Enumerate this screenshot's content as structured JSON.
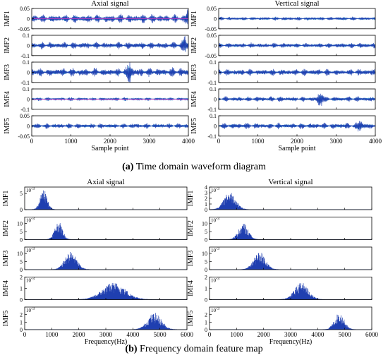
{
  "captions": {
    "a_label": "(a)",
    "a_text": "Time domain waveform diagram",
    "b_label": "(b)",
    "b_text": "Frequency domain feature map"
  },
  "colors": {
    "signal_dark": "#1f3fb0",
    "signal_light": "#3fb3d8",
    "signal_magenta": "#e040c8",
    "axes": "#000000",
    "panel_bg": "#ffffff"
  },
  "chart_data": [
    {
      "type": "line",
      "group": "time",
      "title": "Axial signal",
      "xlabel": "Sample point",
      "xlim": [
        0,
        4000
      ],
      "xticks": [
        "0",
        "1000",
        "2000",
        "3000",
        "4000"
      ],
      "panels": [
        {
          "name": "IMF1",
          "ylim": [
            -0.05,
            0.05
          ],
          "yticks": [
            "-0.05",
            "0",
            "0.05"
          ],
          "amp": 0.025,
          "bursts": [
            [
              4000,
              0.045
            ]
          ]
        },
        {
          "name": "IMF2",
          "ylim": [
            -0.1,
            0.1
          ],
          "yticks": [
            "-0.1",
            "0",
            "0.1"
          ],
          "amp": 0.04,
          "bursts": [
            [
              3900,
              0.08
            ]
          ]
        },
        {
          "name": "IMF3",
          "ylim": [
            -0.1,
            0.1
          ],
          "yticks": [
            "-0.1",
            "0",
            "0.1"
          ],
          "amp": 0.05,
          "bursts": [
            [
              2500,
              0.09
            ]
          ]
        },
        {
          "name": "IMF4",
          "ylim": [
            -0.1,
            0.1
          ],
          "yticks": [
            "-0.1",
            "0",
            "0.1"
          ],
          "amp": 0.02,
          "bursts": []
        },
        {
          "name": "IMF5",
          "ylim": [
            -0.05,
            0.05
          ],
          "yticks": [
            "-0.05",
            "0",
            "0.05"
          ],
          "amp": 0.015,
          "bursts": []
        }
      ]
    },
    {
      "type": "line",
      "group": "time",
      "title": "Vertical signal",
      "xlabel": "Sample point",
      "xlim": [
        0,
        4000
      ],
      "xticks": [
        "0",
        "1000",
        "2000",
        "3000",
        "4000"
      ],
      "panels": [
        {
          "name": "IMF1",
          "ylim": [
            -0.05,
            0.05
          ],
          "yticks": [
            "-0.05",
            "0",
            "0.05"
          ],
          "amp": 0.01,
          "bursts": []
        },
        {
          "name": "IMF2",
          "ylim": [
            -0.05,
            0.05
          ],
          "yticks": [
            "-0.05",
            "0",
            "0.05"
          ],
          "amp": 0.015,
          "bursts": []
        },
        {
          "name": "IMF3",
          "ylim": [
            -0.1,
            0.1
          ],
          "yticks": [
            "-0.1",
            "0",
            "0.1"
          ],
          "amp": 0.04,
          "bursts": []
        },
        {
          "name": "IMF4",
          "ylim": [
            -0.1,
            0.1
          ],
          "yticks": [
            "-0.1",
            "0",
            "0.1"
          ],
          "amp": 0.03,
          "bursts": [
            [
              2600,
              0.08
            ]
          ]
        },
        {
          "name": "IMF5",
          "ylim": [
            -0.1,
            0.1
          ],
          "yticks": [
            "-0.1",
            "0",
            "0.1"
          ],
          "amp": 0.035,
          "bursts": [
            [
              3600,
              0.06
            ]
          ]
        }
      ]
    },
    {
      "type": "line",
      "group": "freq",
      "title": "Axial signal",
      "xlabel": "Frequency(Hz)",
      "xlim": [
        0,
        6000
      ],
      "xticks": [
        "0",
        "1000",
        "2000",
        "3000",
        "4000",
        "5000",
        "6000"
      ],
      "panels": [
        {
          "name": "IMF1",
          "ylim": [
            0,
            7
          ],
          "yticks": [
            "0",
            "5"
          ],
          "exponent": "10-3",
          "peaks": [
            [
              700,
              6.5,
              180
            ]
          ]
        },
        {
          "name": "IMF2",
          "ylim": [
            0,
            14
          ],
          "yticks": [
            "0",
            "5",
            "10"
          ],
          "exponent": "10-3",
          "peaks": [
            [
              1250,
              11,
              200
            ]
          ]
        },
        {
          "name": "IMF3",
          "ylim": [
            0,
            14
          ],
          "yticks": [
            "0",
            "5",
            "10"
          ],
          "exponent": "10-3",
          "peaks": [
            [
              1700,
              11,
              300
            ]
          ]
        },
        {
          "name": "IMF4",
          "ylim": [
            0,
            2
          ],
          "yticks": [
            "0",
            "1",
            "2"
          ],
          "exponent": "10-3",
          "peaks": [
            [
              3300,
              1.5,
              600
            ]
          ]
        },
        {
          "name": "IMF5",
          "ylim": [
            0,
            3
          ],
          "yticks": [
            "0",
            "1",
            "2"
          ],
          "exponent": "10-3",
          "peaks": [
            [
              4800,
              2.2,
              350
            ]
          ]
        }
      ]
    },
    {
      "type": "line",
      "group": "freq",
      "title": "Vertical signal",
      "xlabel": "Frequency(Hz)",
      "xlim": [
        0,
        6000
      ],
      "xticks": [
        "0",
        "1000",
        "2000",
        "3000",
        "4000",
        "5000",
        "6000"
      ],
      "panels": [
        {
          "name": "IMF1",
          "ylim": [
            0,
            4
          ],
          "yticks": [
            "0",
            "1",
            "2",
            "3",
            "4"
          ],
          "exponent": "10-3",
          "peaks": [
            [
              750,
              3.2,
              300
            ]
          ]
        },
        {
          "name": "IMF2",
          "ylim": [
            0,
            14
          ],
          "yticks": [
            "0",
            "5",
            "10"
          ],
          "exponent": "10-3",
          "peaks": [
            [
              1250,
              10,
              250
            ]
          ]
        },
        {
          "name": "IMF3",
          "ylim": [
            0,
            14
          ],
          "yticks": [
            "0",
            "5",
            "10"
          ],
          "exponent": "10-3",
          "peaks": [
            [
              1850,
              11,
              300
            ]
          ]
        },
        {
          "name": "IMF4",
          "ylim": [
            0,
            2
          ],
          "yticks": [
            "0",
            "1",
            "2"
          ],
          "exponent": "10-3",
          "peaks": [
            [
              3400,
              1.5,
              350
            ]
          ]
        },
        {
          "name": "IMF5",
          "ylim": [
            0,
            3
          ],
          "yticks": [
            "0",
            "1",
            "2"
          ],
          "exponent": "10-3",
          "peaks": [
            [
              4800,
              2.2,
              250
            ]
          ]
        }
      ]
    }
  ]
}
